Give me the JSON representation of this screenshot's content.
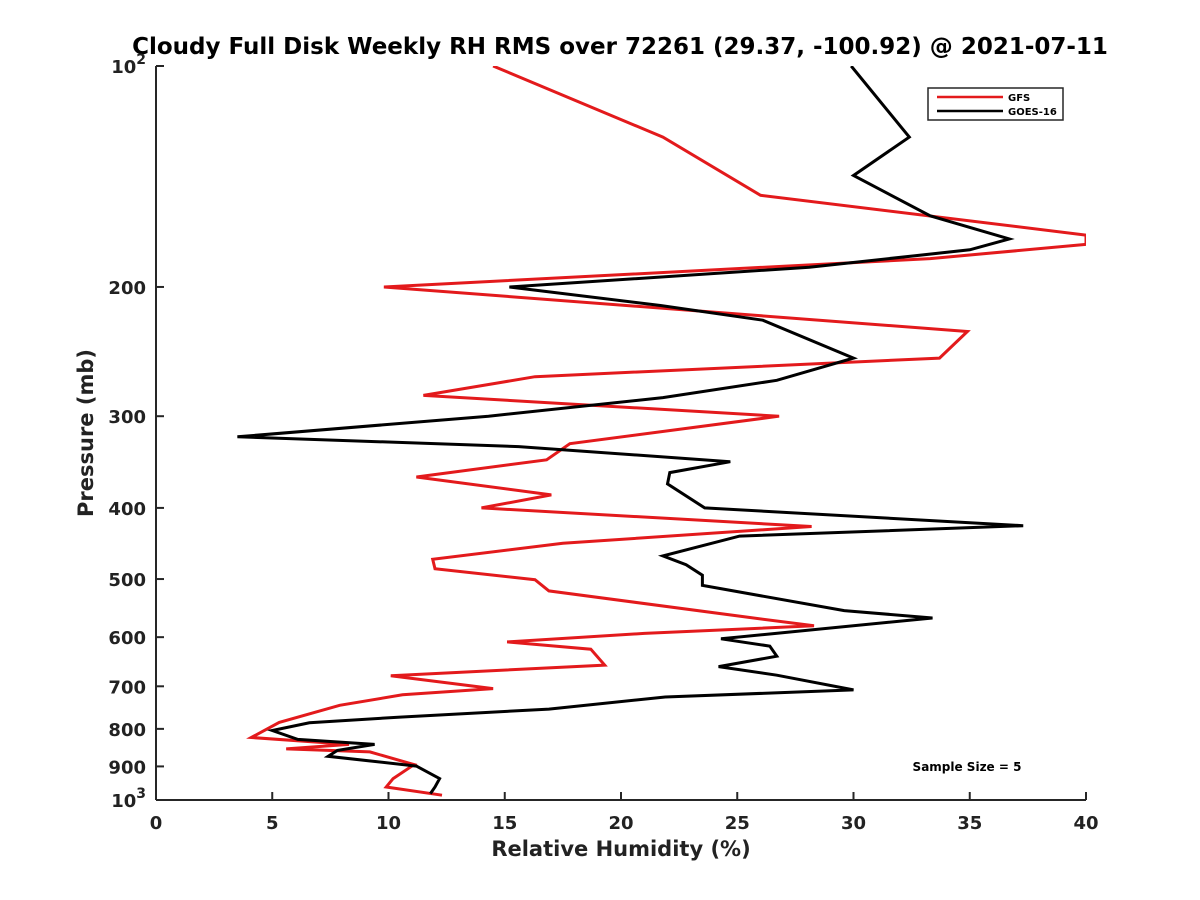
{
  "chart_data": {
    "type": "line",
    "title": "Cloudy Full Disk Weekly RH RMS over 72261 (29.37, -100.92) @ 2021-07-11",
    "xlabel": "Relative Humidity (%)",
    "ylabel": "Pressure (mb)",
    "xlim": [
      0,
      40
    ],
    "ylim": [
      100,
      1000
    ],
    "y_scale": "log",
    "y_reversed": true,
    "grid": false,
    "legend_position": "top-right",
    "annotation": "Sample Size = 5",
    "x_ticks": [
      0,
      5,
      10,
      15,
      20,
      25,
      30,
      35,
      40
    ],
    "y_ticks": [
      {
        "value": 100,
        "base": "10",
        "exp": "2"
      },
      {
        "value": 200,
        "label": "200"
      },
      {
        "value": 300,
        "label": "300"
      },
      {
        "value": 400,
        "label": "400"
      },
      {
        "value": 500,
        "label": "500"
      },
      {
        "value": 600,
        "label": "600"
      },
      {
        "value": 700,
        "label": "700"
      },
      {
        "value": 800,
        "label": "800"
      },
      {
        "value": 900,
        "label": "900"
      },
      {
        "value": 1000,
        "base": "10",
        "exp": "3"
      }
    ],
    "series": [
      {
        "name": "GFS",
        "color": "#e31a1c",
        "points": [
          [
            14.5,
            100
          ],
          [
            21.8,
            125
          ],
          [
            26.0,
            150
          ],
          [
            40.0,
            170
          ],
          [
            40.0,
            175
          ],
          [
            33.3,
            183
          ],
          [
            9.8,
            200
          ],
          [
            34.9,
            230
          ],
          [
            33.7,
            250
          ],
          [
            16.3,
            265
          ],
          [
            11.5,
            281
          ],
          [
            26.8,
            300
          ],
          [
            17.8,
            327
          ],
          [
            16.8,
            344
          ],
          [
            11.2,
            363
          ],
          [
            17.0,
            384
          ],
          [
            14.0,
            400
          ],
          [
            28.2,
            424
          ],
          [
            17.5,
            447
          ],
          [
            11.9,
            470
          ],
          [
            12.0,
            484
          ],
          [
            16.3,
            501
          ],
          [
            16.9,
            519
          ],
          [
            25.5,
            564
          ],
          [
            28.3,
            579
          ],
          [
            21.0,
            593
          ],
          [
            15.1,
            609
          ],
          [
            18.7,
            623
          ],
          [
            19.3,
            655
          ],
          [
            10.1,
            677
          ],
          [
            14.5,
            705
          ],
          [
            10.6,
            719
          ],
          [
            7.9,
            743
          ],
          [
            5.3,
            784
          ],
          [
            4.1,
            822
          ],
          [
            8.3,
            840
          ],
          [
            5.6,
            852
          ],
          [
            9.2,
            860
          ],
          [
            11.1,
            895
          ],
          [
            10.2,
            935
          ],
          [
            9.9,
            960
          ],
          [
            12.3,
            985
          ]
        ]
      },
      {
        "name": "GOES-16",
        "color": "#000000",
        "points": [
          [
            29.9,
            100
          ],
          [
            32.4,
            125
          ],
          [
            30.0,
            141
          ],
          [
            33.3,
            160
          ],
          [
            36.7,
            172
          ],
          [
            35.0,
            178
          ],
          [
            28.1,
            188
          ],
          [
            15.2,
            200
          ],
          [
            21.7,
            212
          ],
          [
            26.1,
            222
          ],
          [
            30.0,
            250
          ],
          [
            26.7,
            268
          ],
          [
            21.8,
            283
          ],
          [
            14.3,
            300
          ],
          [
            3.5,
            320
          ],
          [
            15.6,
            330
          ],
          [
            24.7,
            346
          ],
          [
            22.1,
            358
          ],
          [
            22.0,
            371
          ],
          [
            23.6,
            400
          ],
          [
            37.3,
            423
          ],
          [
            25.1,
            437
          ],
          [
            21.8,
            465
          ],
          [
            22.8,
            478
          ],
          [
            23.5,
            494
          ],
          [
            23.5,
            510
          ],
          [
            29.6,
            552
          ],
          [
            33.4,
            565
          ],
          [
            24.3,
            603
          ],
          [
            26.4,
            617
          ],
          [
            26.7,
            637
          ],
          [
            24.2,
            658
          ],
          [
            26.7,
            676
          ],
          [
            30.0,
            708
          ],
          [
            21.9,
            724
          ],
          [
            16.9,
            752
          ],
          [
            10.5,
            771
          ],
          [
            6.6,
            785
          ],
          [
            5.0,
            804
          ],
          [
            6.1,
            827
          ],
          [
            9.4,
            840
          ],
          [
            7.8,
            856
          ],
          [
            7.4,
            872
          ],
          [
            11.2,
            899
          ],
          [
            12.2,
            935
          ],
          [
            12.0,
            960
          ],
          [
            11.8,
            980
          ]
        ]
      }
    ]
  }
}
